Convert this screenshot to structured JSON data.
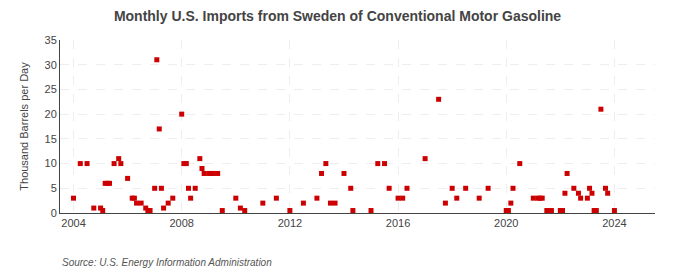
{
  "chart_data": {
    "type": "scatter",
    "title": "Monthly U.S. Imports from Sweden of Conventional Motor Gasoline",
    "y_label": "Thousand Barrels per Day",
    "annotations": [
      "Source: U.S. Energy Information Administration"
    ],
    "color": "#CC0000",
    "marker": "square",
    "grid": true,
    "xlim": [
      2003.5,
      2025.5
    ],
    "xticks": [
      2004,
      2008,
      2012,
      2016,
      2020,
      2024
    ],
    "ylim": [
      0,
      35
    ],
    "yticks": [
      0,
      5,
      10,
      15,
      20,
      25,
      30,
      35
    ],
    "x": [
      2004.0,
      2004.25,
      2004.5,
      2004.75,
      2005.0,
      2005.08,
      2005.17,
      2005.25,
      2005.33,
      2005.5,
      2005.67,
      2005.75,
      2006.0,
      2006.17,
      2006.25,
      2006.33,
      2006.5,
      2006.67,
      2006.75,
      2006.83,
      2007.0,
      2007.08,
      2007.17,
      2007.25,
      2007.33,
      2007.5,
      2007.67,
      2008.0,
      2008.08,
      2008.17,
      2008.25,
      2008.33,
      2008.5,
      2008.67,
      2008.75,
      2008.83,
      2009.0,
      2009.08,
      2009.17,
      2009.33,
      2009.5,
      2010.0,
      2010.17,
      2010.33,
      2011.0,
      2011.5,
      2012.0,
      2012.5,
      2013.0,
      2013.17,
      2013.33,
      2013.5,
      2013.67,
      2014.0,
      2014.25,
      2014.33,
      2015.0,
      2015.25,
      2015.5,
      2015.67,
      2016.0,
      2016.17,
      2016.33,
      2017.0,
      2017.5,
      2017.75,
      2018.0,
      2018.17,
      2018.5,
      2019.0,
      2019.33,
      2020.0,
      2020.08,
      2020.17,
      2020.25,
      2020.5,
      2021.0,
      2021.17,
      2021.25,
      2021.33,
      2021.5,
      2021.67,
      2022.0,
      2022.08,
      2022.17,
      2022.25,
      2022.5,
      2022.67,
      2022.75,
      2023.0,
      2023.08,
      2023.17,
      2023.25,
      2023.33,
      2023.5,
      2023.67,
      2023.75,
      2024.0
    ],
    "values": [
      3,
      10,
      10,
      1,
      1,
      0.5,
      6,
      6,
      6,
      10,
      11,
      10,
      7,
      3,
      3,
      2,
      2,
      1,
      0.5,
      0.5,
      5,
      31,
      17,
      5,
      1,
      2,
      3,
      20,
      10,
      10,
      5,
      3,
      5,
      11,
      9,
      8,
      8,
      8,
      8,
      8,
      0.5,
      3,
      1,
      0.5,
      2,
      3,
      0.5,
      2,
      3,
      8,
      10,
      2,
      2,
      8,
      5,
      0.5,
      0.5,
      10,
      10,
      5,
      3,
      3,
      5,
      11,
      23,
      2,
      5,
      3,
      5,
      3,
      5,
      0.5,
      0.5,
      2,
      5,
      10,
      3,
      3,
      3,
      3,
      0.5,
      0.5,
      0.5,
      0.5,
      4,
      8,
      5,
      4,
      3,
      3,
      5,
      4,
      0.5,
      0.5,
      21,
      5,
      4,
      0.5
    ]
  }
}
